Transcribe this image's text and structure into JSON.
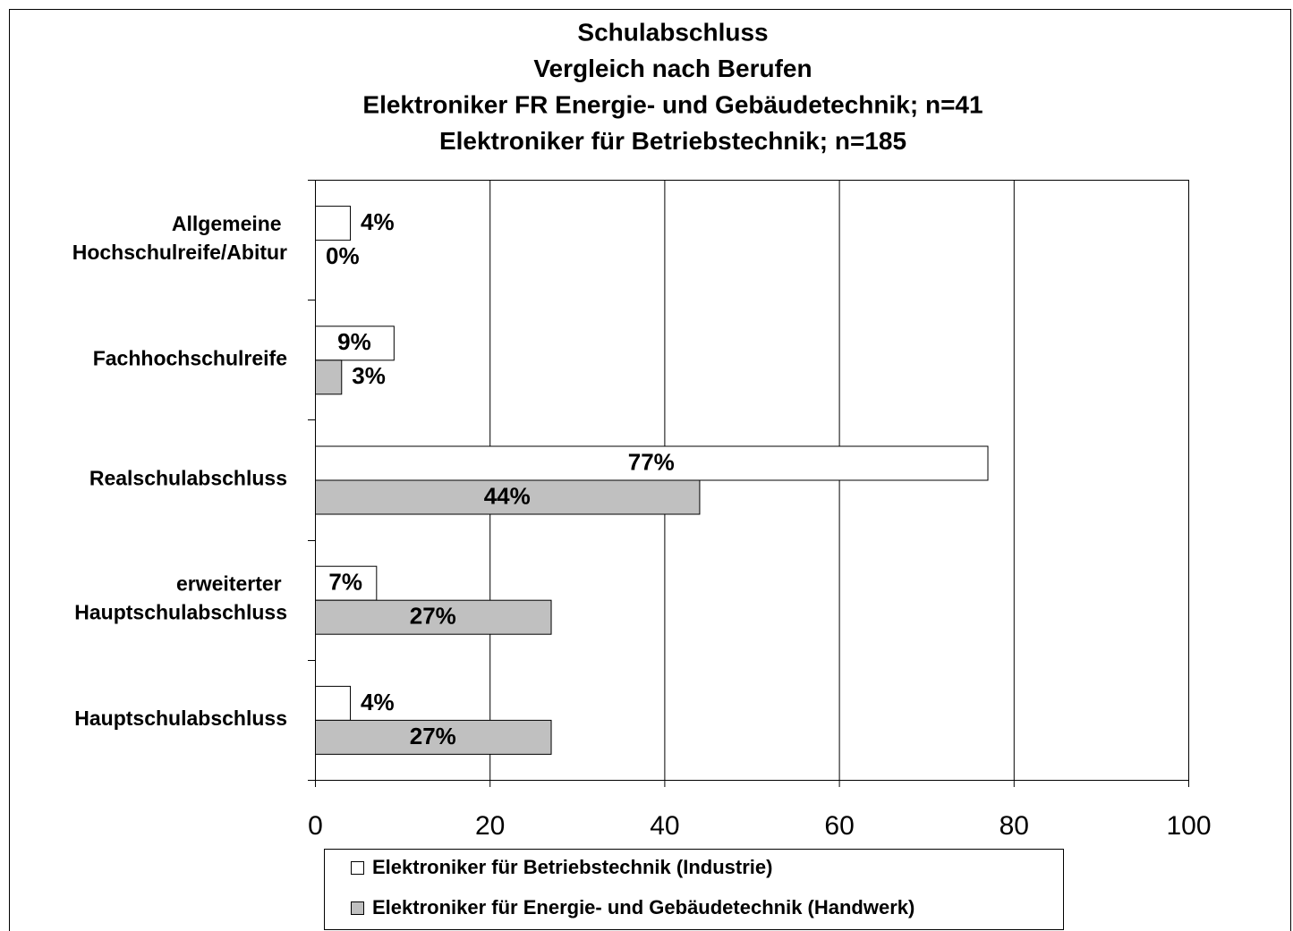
{
  "chart_data": {
    "type": "bar",
    "orientation": "horizontal",
    "title": [
      "Schulabschluss",
      "Vergleich nach Berufen",
      "Elektroniker FR Energie- und Gebäudetechnik; n=41",
      "Elektroniker für Betriebstechnik; n=185"
    ],
    "categories": [
      "Allgemeine Hochschulreife/Abitur",
      "Fachhochschulreife",
      "Realschulabschluss",
      "erweiterter Hauptschulabschluss",
      "Hauptschulabschluss"
    ],
    "series": [
      {
        "name": "Elektroniker für Betriebstechnik (Industrie)",
        "color": "#ffffff",
        "values": [
          4,
          9,
          77,
          7,
          4
        ],
        "value_labels": [
          "4%",
          "9%",
          "77%",
          "7%",
          "4%"
        ]
      },
      {
        "name": "Elektroniker für Energie- und Gebäudetechnik (Handwerk)",
        "color": "#c0c0c0",
        "values": [
          0,
          3,
          44,
          27,
          27
        ],
        "value_labels": [
          "0%",
          "3%",
          "44%",
          "27%",
          "27%"
        ]
      }
    ],
    "xlim": [
      0,
      100
    ],
    "xticks": [
      0,
      20,
      40,
      60,
      80,
      100
    ],
    "grid": true,
    "legend": "bottom"
  }
}
